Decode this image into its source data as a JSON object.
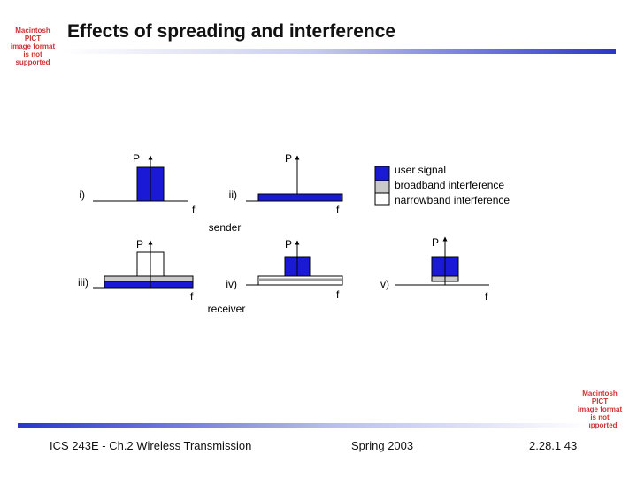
{
  "slide": {
    "title": "Effects of spreading and interference",
    "placeholder_top": [
      "Macintosh PICT",
      "image format",
      "is not supported"
    ],
    "placeholder_bottom": [
      "Macintosh PICT",
      "image format",
      "is not supported"
    ]
  },
  "diagram": {
    "axis_power": "P",
    "axis_freq": "f",
    "panel_labels": {
      "i": "i)",
      "ii": "ii)",
      "iii": "iii)",
      "iv": "iv)",
      "v": "v)"
    },
    "sender_label": "sender",
    "receiver_label": "receiver",
    "legend": [
      {
        "label": "user signal",
        "color": "#1a1ad6"
      },
      {
        "label": "broadband interference",
        "color": "#c9c9c9"
      },
      {
        "label": "narrowband interference",
        "color": "#ffffff"
      }
    ]
  },
  "footer": {
    "course": "ICS 243E - Ch.2 Wireless Transmission",
    "term": "Spring 2003",
    "page": "2.28.1 43"
  }
}
